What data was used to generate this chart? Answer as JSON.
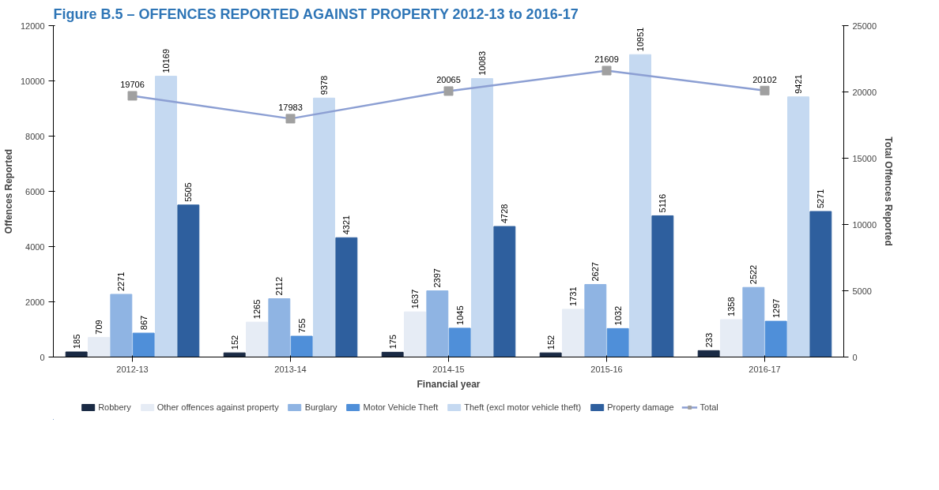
{
  "chart_data": {
    "type": "bar",
    "title": "Figure B.5 – OFFENCES REPORTED AGAINST PROPERTY 2012-13 to 2016-17",
    "xlabel": "Financial year",
    "ylabel": "Offences Reported",
    "y2label": "Total Offences Reported",
    "categories": [
      "2012-13",
      "2013-14",
      "2014-15",
      "2015-16",
      "2016-17"
    ],
    "series": [
      {
        "name": "Robbery",
        "color": "#1a2a44",
        "values": [
          185,
          152,
          175,
          152,
          233
        ]
      },
      {
        "name": "Other offences against property",
        "color": "#e6ecf5",
        "values": [
          709,
          1265,
          1637,
          1731,
          1358
        ]
      },
      {
        "name": "Burglary",
        "color": "#8fb4e3",
        "values": [
          2271,
          2112,
          2397,
          2627,
          2522
        ]
      },
      {
        "name": "Motor Vehicle Theft",
        "color": "#4f8fd9",
        "values": [
          867,
          755,
          1045,
          1032,
          1297
        ]
      },
      {
        "name": "Theft (excl motor vehicle theft)",
        "color": "#c5d9f1",
        "values": [
          10169,
          9378,
          10083,
          10951,
          9421
        ]
      },
      {
        "name": "Property damage",
        "color": "#2e5f9e",
        "values": [
          5505,
          4321,
          4728,
          5116,
          5271
        ]
      },
      {
        "name": "Total",
        "color": "#8c9fd3",
        "type": "line",
        "axis": "y2",
        "marker": "square",
        "values": [
          19706,
          17983,
          20065,
          21609,
          20102
        ]
      }
    ],
    "ylim": [
      0,
      12000
    ],
    "yticks": [
      0,
      2000,
      4000,
      6000,
      8000,
      10000,
      12000
    ],
    "y2lim": [
      0,
      25000
    ],
    "y2ticks": [
      0,
      5000,
      10000,
      15000,
      20000,
      25000
    ],
    "data_labels": true,
    "grid": false,
    "legend": "bottom"
  }
}
